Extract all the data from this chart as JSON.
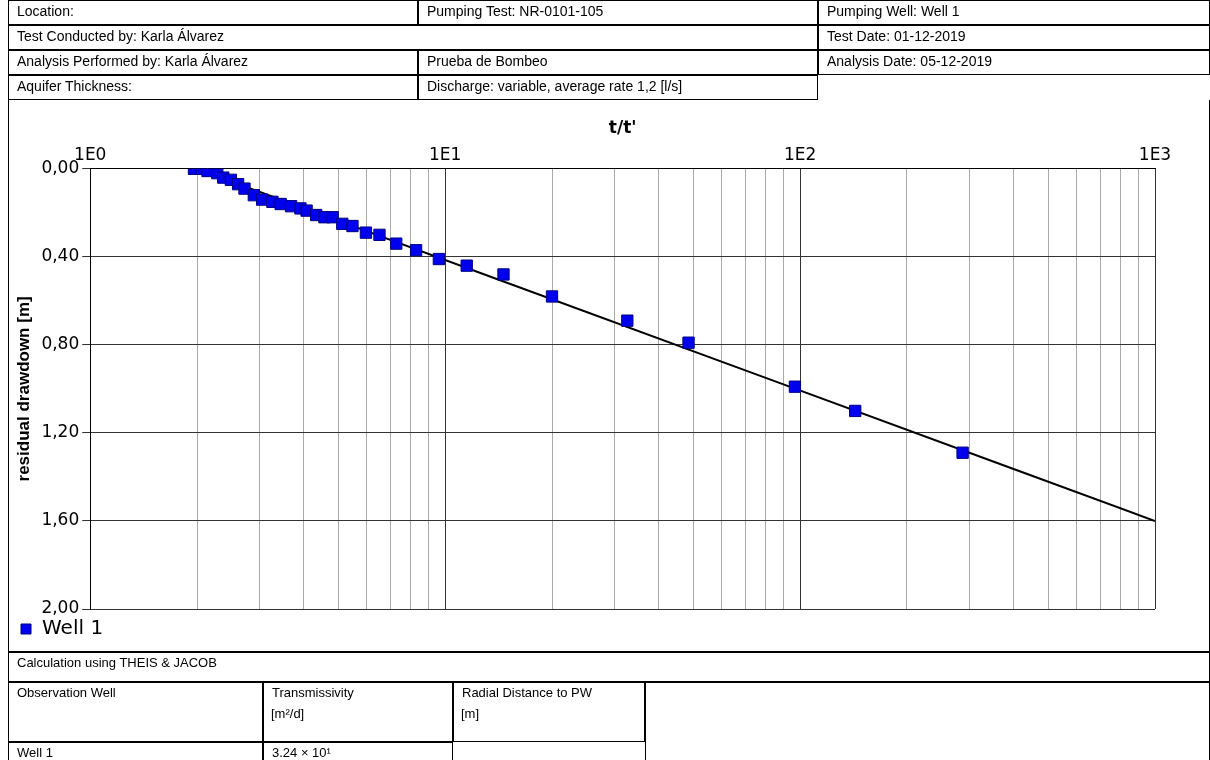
{
  "chart_data": {
    "type": "scatter",
    "xlabel": "t/t'",
    "ylabel": "residual drawdown [m]",
    "log": "x",
    "grid": true,
    "legend": "bottom left",
    "marker": "square",
    "xlim": [
      1,
      1000
    ],
    "ylim": [
      2.0,
      0
    ],
    "xticks": [
      {
        "value": 1,
        "label": "1E0"
      },
      {
        "value": 2,
        "label": null
      },
      {
        "value": 3,
        "label": null
      },
      {
        "value": 4,
        "label": null
      },
      {
        "value": 5,
        "label": null
      },
      {
        "value": 6,
        "label": null
      },
      {
        "value": 7,
        "label": null
      },
      {
        "value": 8,
        "label": null
      },
      {
        "value": 9,
        "label": null
      },
      {
        "value": 10,
        "label": "1E1"
      },
      {
        "value": 20,
        "label": null
      },
      {
        "value": 30,
        "label": null
      },
      {
        "value": 40,
        "label": null
      },
      {
        "value": 50,
        "label": null
      },
      {
        "value": 60,
        "label": null
      },
      {
        "value": 70,
        "label": null
      },
      {
        "value": 80,
        "label": null
      },
      {
        "value": 90,
        "label": null
      },
      {
        "value": 100,
        "label": "1E2"
      },
      {
        "value": 200,
        "label": null
      },
      {
        "value": 300,
        "label": null
      },
      {
        "value": 400,
        "label": null
      },
      {
        "value": 500,
        "label": null
      },
      {
        "value": 600,
        "label": null
      },
      {
        "value": 700,
        "label": null
      },
      {
        "value": 800,
        "label": null
      },
      {
        "value": 900,
        "label": null
      },
      {
        "value": 1000,
        "label": "1E3"
      }
    ],
    "yticks": [
      {
        "value": 0,
        "label": "0,00"
      },
      {
        "value": 0.4,
        "label": "0,40"
      },
      {
        "value": 0.8,
        "label": "0,80"
      },
      {
        "value": 1.2,
        "label": "1,20"
      },
      {
        "value": 1.6,
        "label": "1,60"
      },
      {
        "value": 2.0,
        "label": "2,00"
      }
    ],
    "series": [
      {
        "name": "Well 1",
        "color": "#0000ee",
        "x": [
          1.96,
          2.06,
          2.14,
          2.28,
          2.37,
          2.49,
          2.61,
          2.72,
          2.89,
          3.05,
          3.26,
          3.44,
          3.68,
          3.91,
          4.07,
          4.33,
          4.57,
          4.82,
          5.13,
          5.48,
          5.98,
          6.53,
          7.28,
          8.28,
          9.6,
          11.5,
          14.6,
          20.0,
          32.6,
          48.5,
          96.7,
          143,
          287
        ],
        "values": [
          0,
          0,
          0.01,
          0.02,
          0.04,
          0.05,
          0.07,
          0.09,
          0.12,
          0.14,
          0.15,
          0.16,
          0.17,
          0.18,
          0.19,
          0.21,
          0.22,
          0.22,
          0.25,
          0.26,
          0.29,
          0.3,
          0.34,
          0.37,
          0.41,
          0.44,
          0.48,
          0.58,
          0.69,
          0.79,
          0.99,
          1.1,
          1.29
        ]
      },
      {
        "type": "line",
        "color": "#000000",
        "marker": "none",
        "x": [
          2,
          1000
        ],
        "values": [
          0,
          1.6
        ]
      }
    ],
    "annotations": [
      "Location:",
      "Pumping Test: NR-0101-105",
      "Pumping Well: Well 1",
      "Test Conducted by: Karla Álvarez",
      "Test Date: 01-12-2019",
      "Analysis Performed by: Karla Álvarez",
      "Prueba de Bombeo",
      "Analysis Date: 05-12-2019",
      "Aquifer Thickness:",
      "Discharge: variable, average rate 1,2 [l/s]",
      "Calculation using THEIS & JACOB",
      "Observation Well",
      "Transmissivity",
      "[m²/d]",
      "Radial Distance to PW",
      "[m]",
      "Well 1",
      "3.24 × 10¹"
    ]
  }
}
